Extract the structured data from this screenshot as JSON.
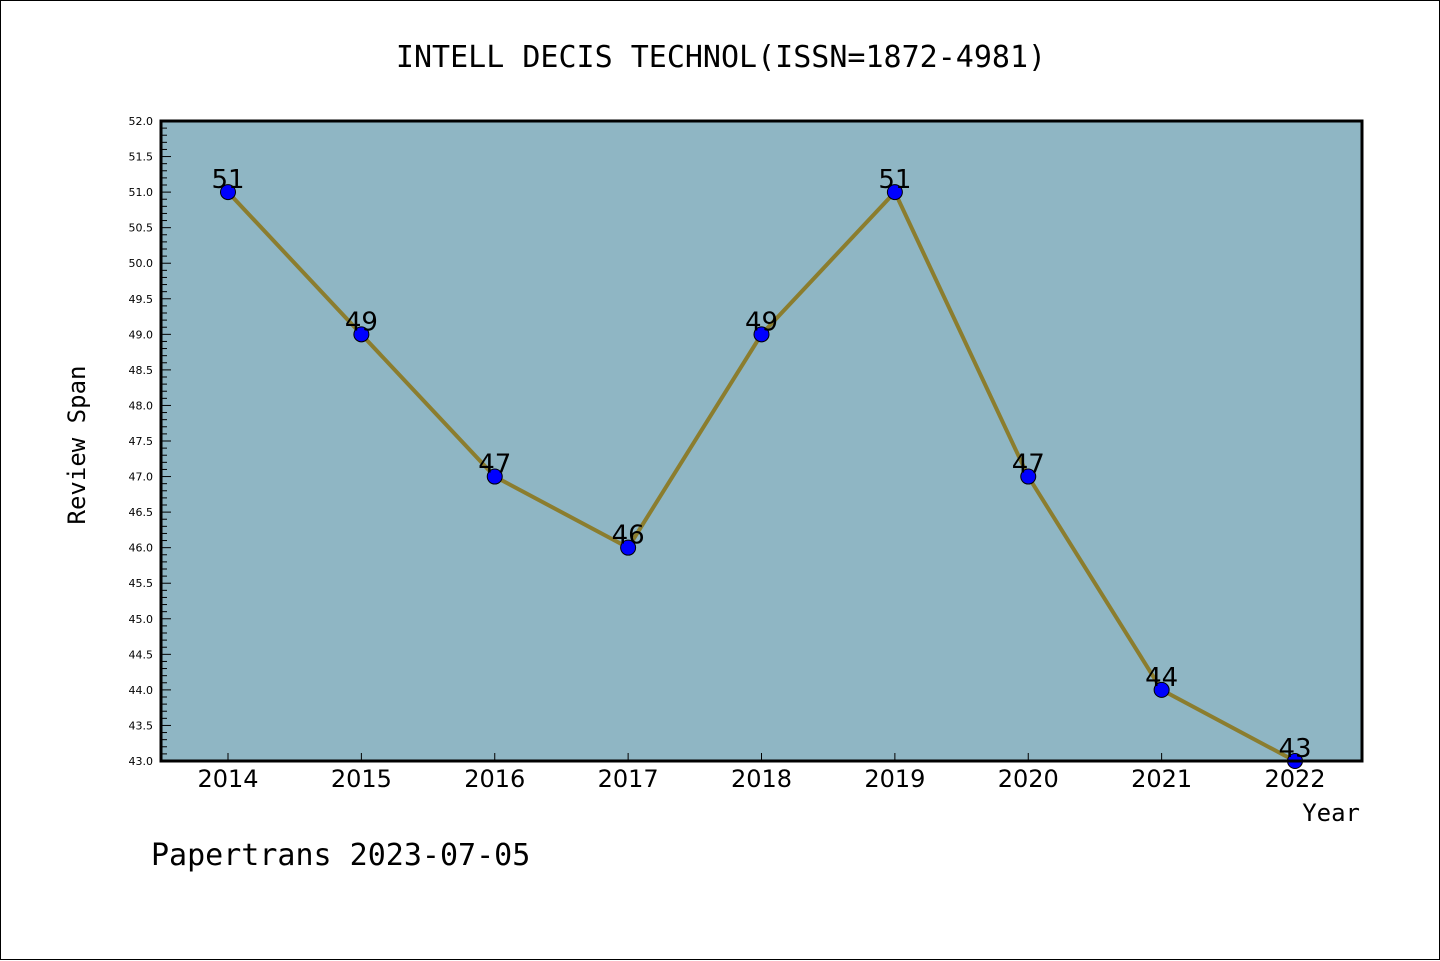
{
  "chart_data": {
    "type": "line",
    "title": "INTELL DECIS TECHNOL(ISSN=1872-4981)",
    "xlabel": "Year",
    "ylabel": "Review Span",
    "categories": [
      "2014",
      "2015",
      "2016",
      "2017",
      "2018",
      "2019",
      "2020",
      "2021",
      "2022"
    ],
    "series": [
      {
        "values": [
          51,
          49,
          47,
          46,
          49,
          51,
          47,
          44,
          43
        ]
      }
    ],
    "data_labels": [
      "51",
      "49",
      "47",
      "46",
      "49",
      "51",
      "47",
      "44",
      "43"
    ],
    "yticks": [
      "43.0",
      "43.5",
      "44.0",
      "44.5",
      "45.0",
      "45.5",
      "46.0",
      "46.5",
      "47.0",
      "47.5",
      "48.0",
      "48.5",
      "49.0",
      "49.5",
      "50.0",
      "50.5",
      "51.0",
      "51.5",
      "52.0"
    ],
    "ylim": [
      43,
      52
    ],
    "grid": false,
    "legend": "none",
    "colors": {
      "plot_background": "#8fb6c4",
      "line": "#8b7d2e",
      "marker": "#0000ff"
    }
  },
  "footer": {
    "text": "Papertrans 2023-07-05"
  }
}
